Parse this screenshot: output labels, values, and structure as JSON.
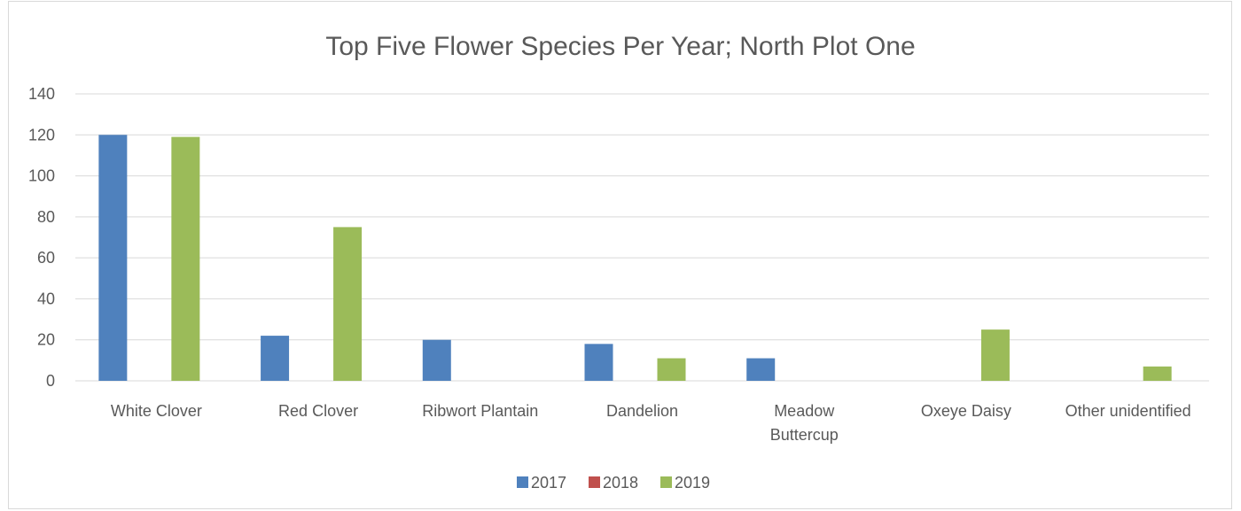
{
  "chart_data": {
    "type": "bar",
    "title": "Top Five Flower Species Per Year; North Plot One",
    "xlabel": "",
    "ylabel": "",
    "categories": [
      [
        "White Clover"
      ],
      [
        "Red Clover"
      ],
      [
        "Ribwort Plantain"
      ],
      [
        "Dandelion"
      ],
      [
        "Meadow",
        "Buttercup"
      ],
      [
        "Oxeye Daisy"
      ],
      [
        "Other unidentified"
      ]
    ],
    "series": [
      {
        "name": "2017",
        "color": "#4f81bd",
        "values": [
          120,
          22,
          20,
          18,
          11,
          0,
          0
        ]
      },
      {
        "name": "2018",
        "color": "#c0504d",
        "values": [
          0,
          0,
          0,
          0,
          0,
          0,
          0
        ]
      },
      {
        "name": "2019",
        "color": "#9bbb59",
        "values": [
          119,
          75,
          0,
          11,
          0,
          25,
          7
        ]
      }
    ],
    "ylim": [
      0,
      140
    ],
    "yticks": [
      0,
      20,
      40,
      60,
      80,
      100,
      120,
      140
    ],
    "grid": true,
    "legend_position": "bottom"
  }
}
